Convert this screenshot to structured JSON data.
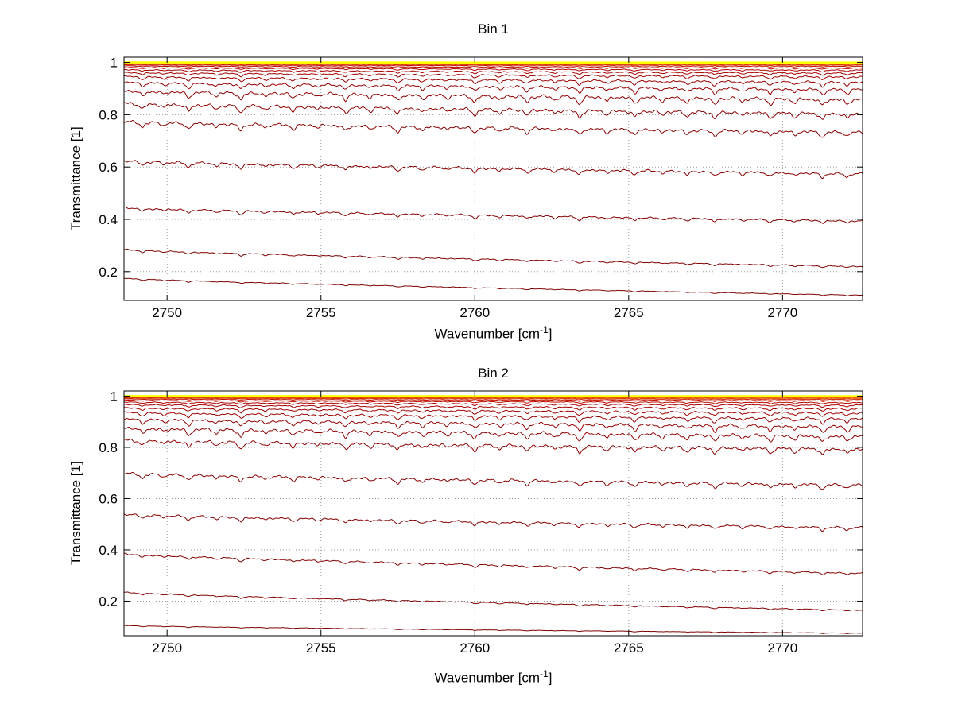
{
  "figure": {
    "background": "#ffffff",
    "axis_color": "#000000",
    "grid_color": "#999999",
    "text_color": "#000000"
  },
  "chart_data": [
    {
      "type": "line",
      "title": "Bin 1",
      "xlabel": "Wavenumber [cm^-1]",
      "xlabel_prefix": "Wavenumber [cm",
      "xlabel_sup": "-1",
      "xlabel_suffix": "]",
      "ylabel": "Transmittance [1]",
      "xlim": [
        2748.6,
        2772.6
      ],
      "ylim": [
        0.09,
        1.02
      ],
      "xticks": [
        2750,
        2755,
        2760,
        2765,
        2770
      ],
      "xtick_labels": [
        "2750",
        "2755",
        "2760",
        "2765",
        "2770"
      ],
      "yticks": [
        0.2,
        0.4,
        0.6,
        0.8,
        1
      ],
      "ytick_labels": [
        "0.2",
        "0.4",
        "0.6",
        "0.8",
        "1"
      ],
      "grid": true,
      "grid_style": "dotted",
      "legend": "none",
      "dip_scale": 0.035,
      "ripple_scale": 0.25,
      "line_halfwidth": 0.09,
      "series": [
        {
          "t_left": 0.175,
          "t_right": 0.11,
          "color": "#7d0000",
          "width": 1
        },
        {
          "t_left": 0.285,
          "t_right": 0.22,
          "color": "#800000",
          "width": 1
        },
        {
          "t_left": 0.445,
          "t_right": 0.395,
          "color": "#840000",
          "width": 1
        },
        {
          "t_left": 0.625,
          "t_right": 0.575,
          "color": "#870000",
          "width": 1
        },
        {
          "t_left": 0.775,
          "t_right": 0.735,
          "color": "#8a0000",
          "width": 1
        },
        {
          "t_left": 0.845,
          "t_right": 0.805,
          "color": "#8e0000",
          "width": 1
        },
        {
          "t_left": 0.893,
          "t_right": 0.86,
          "color": "#920000",
          "width": 1
        },
        {
          "t_left": 0.925,
          "t_right": 0.898,
          "color": "#960000",
          "width": 1
        },
        {
          "t_left": 0.947,
          "t_right": 0.925,
          "color": "#9b0000",
          "width": 1
        },
        {
          "t_left": 0.962,
          "t_right": 0.946,
          "color": "#a00000",
          "width": 1
        },
        {
          "t_left": 0.973,
          "t_right": 0.96,
          "color": "#a70000",
          "width": 1
        },
        {
          "t_left": 0.981,
          "t_right": 0.971,
          "color": "#af0000",
          "width": 1
        },
        {
          "t_left": 0.987,
          "t_right": 0.979,
          "color": "#b90800",
          "width": 1
        },
        {
          "t_left": 0.991,
          "t_right": 0.9855,
          "color": "#c51800",
          "width": 1
        },
        {
          "t_left": 0.9938,
          "t_right": 0.9898,
          "color": "#d22c00",
          "width": 1
        },
        {
          "t_left": 0.9958,
          "t_right": 0.9928,
          "color": "#e04200",
          "width": 1
        },
        {
          "t_left": 0.9973,
          "t_right": 0.9951,
          "color": "#ee5c00",
          "width": 1
        },
        {
          "t_left": 0.9983,
          "t_right": 0.9968,
          "color": "#f97a00",
          "width": 1
        },
        {
          "t_left": 0.999,
          "t_right": 0.998,
          "color": "#ff9c00",
          "width": 1.2
        },
        {
          "t_left": 0.99945,
          "t_right": 0.99885,
          "color": "#ffbe00",
          "width": 1.5
        },
        {
          "t_left": 0.99975,
          "t_right": 0.99945,
          "color": "#ffdf00",
          "width": 2
        },
        {
          "t_left": 1.0,
          "t_right": 0.9998,
          "color": "#ffff00",
          "width": 2.6
        }
      ],
      "absorption_lines": [
        {
          "x": 2749.2,
          "s": 0.75
        },
        {
          "x": 2749.9,
          "s": 0.45
        },
        {
          "x": 2750.7,
          "s": 0.9
        },
        {
          "x": 2751.6,
          "s": 0.55
        },
        {
          "x": 2752.4,
          "s": 1.0
        },
        {
          "x": 2753.2,
          "s": 0.5
        },
        {
          "x": 2754.1,
          "s": 0.7
        },
        {
          "x": 2754.9,
          "s": 0.4
        },
        {
          "x": 2755.8,
          "s": 0.8
        },
        {
          "x": 2756.6,
          "s": 0.5
        },
        {
          "x": 2757.5,
          "s": 0.85
        },
        {
          "x": 2758.3,
          "s": 0.6
        },
        {
          "x": 2759.1,
          "s": 0.4
        },
        {
          "x": 2760.0,
          "s": 0.9
        },
        {
          "x": 2760.8,
          "s": 0.6
        },
        {
          "x": 2761.7,
          "s": 0.8
        },
        {
          "x": 2762.6,
          "s": 0.5
        },
        {
          "x": 2763.4,
          "s": 1.0
        },
        {
          "x": 2764.3,
          "s": 0.6
        },
        {
          "x": 2765.2,
          "s": 0.85
        },
        {
          "x": 2766.1,
          "s": 0.5
        },
        {
          "x": 2766.9,
          "s": 0.7
        },
        {
          "x": 2767.8,
          "s": 0.9
        },
        {
          "x": 2768.7,
          "s": 0.5
        },
        {
          "x": 2769.6,
          "s": 0.8
        },
        {
          "x": 2770.4,
          "s": 0.6
        },
        {
          "x": 2771.3,
          "s": 0.9
        },
        {
          "x": 2772.1,
          "s": 0.7
        }
      ]
    },
    {
      "type": "line",
      "title": "Bin 2",
      "xlabel": "Wavenumber [cm^-1]",
      "xlabel_prefix": "Wavenumber [cm",
      "xlabel_sup": "-1",
      "xlabel_suffix": "]",
      "ylabel": "Transmittance [1]",
      "xlim": [
        2748.6,
        2772.6
      ],
      "ylim": [
        0.065,
        1.02
      ],
      "xticks": [
        2750,
        2755,
        2760,
        2765,
        2770
      ],
      "xtick_labels": [
        "2750",
        "2755",
        "2760",
        "2765",
        "2770"
      ],
      "yticks": [
        0.2,
        0.4,
        0.6,
        0.8,
        1
      ],
      "ytick_labels": [
        "0.2",
        "0.4",
        "0.6",
        "0.8",
        "1"
      ],
      "grid": true,
      "grid_style": "dotted",
      "legend": "none",
      "dip_scale": 0.035,
      "ripple_scale": 0.25,
      "line_halfwidth": 0.09,
      "series": [
        {
          "t_left": 0.105,
          "t_right": 0.075,
          "color": "#7d0000",
          "width": 1
        },
        {
          "t_left": 0.235,
          "t_right": 0.165,
          "color": "#800000",
          "width": 1
        },
        {
          "t_left": 0.385,
          "t_right": 0.31,
          "color": "#840000",
          "width": 1
        },
        {
          "t_left": 0.54,
          "t_right": 0.488,
          "color": "#870000",
          "width": 1
        },
        {
          "t_left": 0.7,
          "t_right": 0.655,
          "color": "#8a0000",
          "width": 1
        },
        {
          "t_left": 0.83,
          "t_right": 0.795,
          "color": "#8e0000",
          "width": 1
        },
        {
          "t_left": 0.878,
          "t_right": 0.845,
          "color": "#920000",
          "width": 1
        },
        {
          "t_left": 0.912,
          "t_right": 0.883,
          "color": "#960000",
          "width": 1
        },
        {
          "t_left": 0.937,
          "t_right": 0.913,
          "color": "#9b0000",
          "width": 1
        },
        {
          "t_left": 0.955,
          "t_right": 0.935,
          "color": "#a00000",
          "width": 1
        },
        {
          "t_left": 0.968,
          "t_right": 0.952,
          "color": "#a70000",
          "width": 1
        },
        {
          "t_left": 0.977,
          "t_right": 0.965,
          "color": "#af0000",
          "width": 1
        },
        {
          "t_left": 0.984,
          "t_right": 0.975,
          "color": "#b90800",
          "width": 1
        },
        {
          "t_left": 0.9893,
          "t_right": 0.9824,
          "color": "#c51800",
          "width": 1
        },
        {
          "t_left": 0.9927,
          "t_right": 0.9878,
          "color": "#d22c00",
          "width": 1
        },
        {
          "t_left": 0.995,
          "t_right": 0.9915,
          "color": "#e04200",
          "width": 1
        },
        {
          "t_left": 0.9968,
          "t_right": 0.9942,
          "color": "#ee5c00",
          "width": 1
        },
        {
          "t_left": 0.998,
          "t_right": 0.9962,
          "color": "#f97a00",
          "width": 1
        },
        {
          "t_left": 0.9988,
          "t_right": 0.9977,
          "color": "#ff9c00",
          "width": 1.2
        },
        {
          "t_left": 0.99935,
          "t_right": 0.9987,
          "color": "#ffbe00",
          "width": 1.5
        },
        {
          "t_left": 0.9997,
          "t_right": 0.99935,
          "color": "#ffdf00",
          "width": 2
        },
        {
          "t_left": 1.0,
          "t_right": 0.9998,
          "color": "#ffff00",
          "width": 2.6
        }
      ],
      "absorption_lines": [
        {
          "x": 2749.2,
          "s": 0.75
        },
        {
          "x": 2749.9,
          "s": 0.45
        },
        {
          "x": 2750.7,
          "s": 0.9
        },
        {
          "x": 2751.6,
          "s": 0.55
        },
        {
          "x": 2752.4,
          "s": 1.0
        },
        {
          "x": 2753.2,
          "s": 0.5
        },
        {
          "x": 2754.1,
          "s": 0.7
        },
        {
          "x": 2754.9,
          "s": 0.4
        },
        {
          "x": 2755.8,
          "s": 0.8
        },
        {
          "x": 2756.6,
          "s": 0.5
        },
        {
          "x": 2757.5,
          "s": 0.85
        },
        {
          "x": 2758.3,
          "s": 0.6
        },
        {
          "x": 2759.1,
          "s": 0.4
        },
        {
          "x": 2760.0,
          "s": 0.9
        },
        {
          "x": 2760.8,
          "s": 0.6
        },
        {
          "x": 2761.7,
          "s": 0.8
        },
        {
          "x": 2762.6,
          "s": 0.5
        },
        {
          "x": 2763.4,
          "s": 1.0
        },
        {
          "x": 2764.3,
          "s": 0.6
        },
        {
          "x": 2765.2,
          "s": 0.85
        },
        {
          "x": 2766.1,
          "s": 0.5
        },
        {
          "x": 2766.9,
          "s": 0.7
        },
        {
          "x": 2767.8,
          "s": 0.9
        },
        {
          "x": 2768.7,
          "s": 0.5
        },
        {
          "x": 2769.6,
          "s": 0.8
        },
        {
          "x": 2770.4,
          "s": 0.6
        },
        {
          "x": 2771.3,
          "s": 0.9
        },
        {
          "x": 2772.1,
          "s": 0.7
        }
      ]
    }
  ]
}
